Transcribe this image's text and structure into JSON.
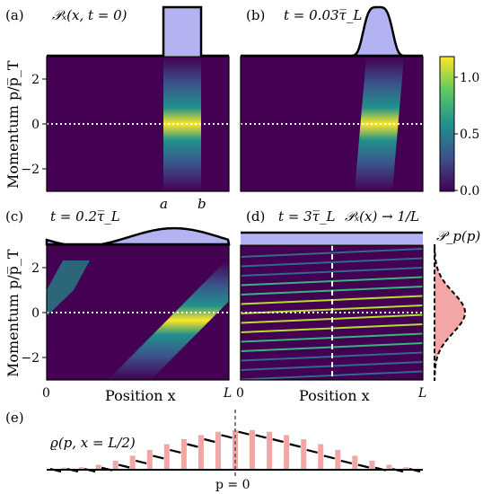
{
  "panels": [
    {
      "id": "a",
      "label": "(a)",
      "annotation": "𝒫ₓ(x, t = 0)"
    },
    {
      "id": "b",
      "label": "(b)",
      "annotation": "t = 0.03τ̅_L"
    },
    {
      "id": "c",
      "label": "(c)",
      "annotation": "t = 0.2τ̅_L"
    },
    {
      "id": "d",
      "label": "(d)",
      "annotation": "t = 3τ̅_L",
      "annotation2": "𝒫ₓ(x) → 1/L"
    },
    {
      "id": "e",
      "label": "(e)",
      "annotation": "ϱ(p, x = L/2)"
    }
  ],
  "side_label": "𝒫_p(p)",
  "axes": {
    "ylabel": "Momentum p/p̅_T",
    "xlabel": "Position x",
    "yticks": [
      "2",
      "0",
      "−2"
    ],
    "x_start": "0",
    "x_end": "L",
    "a_marker": "a",
    "b_marker": "b",
    "p_zero": "p = 0"
  },
  "colorbar": {
    "ticks": [
      "1.0",
      "0.5",
      "0.0"
    ],
    "range": [
      0,
      1.15
    ]
  },
  "colors": {
    "background": "#440154",
    "fill": "#b3b3f2",
    "pink": "#f4a6a6"
  },
  "chart_data": [
    {
      "type": "heatmap",
      "panel": "a",
      "xlim": [
        0,
        1
      ],
      "ylim": [
        -2.9,
        2.9
      ],
      "band": {
        "x_from": 0.6,
        "x_to": 0.8,
        "slope": 0
      }
    },
    {
      "type": "heatmap",
      "panel": "b",
      "xlim": [
        0,
        1
      ],
      "ylim": [
        -2.9,
        2.9
      ],
      "band": {
        "x_from": 0.6,
        "x_to": 0.8,
        "slope": 0.035
      }
    },
    {
      "type": "heatmap",
      "panel": "c",
      "xlim": [
        0,
        1
      ],
      "ylim": [
        -2.9,
        2.9
      ],
      "band": {
        "x_from": 0.6,
        "x_to": 0.8,
        "slope": 0.2
      }
    },
    {
      "type": "heatmap",
      "panel": "d",
      "xlim": [
        0,
        1
      ],
      "ylim": [
        -2.9,
        2.9
      ],
      "fringes": 14
    },
    {
      "type": "bar",
      "panel": "e",
      "xlim": [
        -11,
        11
      ],
      "values": [
        0.02,
        0.05,
        0.02,
        0.06,
        0.02,
        0.12,
        0.05,
        0.22,
        0.12,
        0.34,
        0.22,
        0.48,
        0.34,
        0.62,
        0.48,
        0.74,
        0.62,
        0.84,
        0.74,
        0.92,
        0.84,
        0.96,
        0.92,
        0.96,
        0.84,
        0.92,
        0.74,
        0.84,
        0.62,
        0.74,
        0.48,
        0.62,
        0.34,
        0.48,
        0.22,
        0.34,
        0.12,
        0.22,
        0.05,
        0.12,
        0.02,
        0.06,
        0.02
      ]
    }
  ]
}
